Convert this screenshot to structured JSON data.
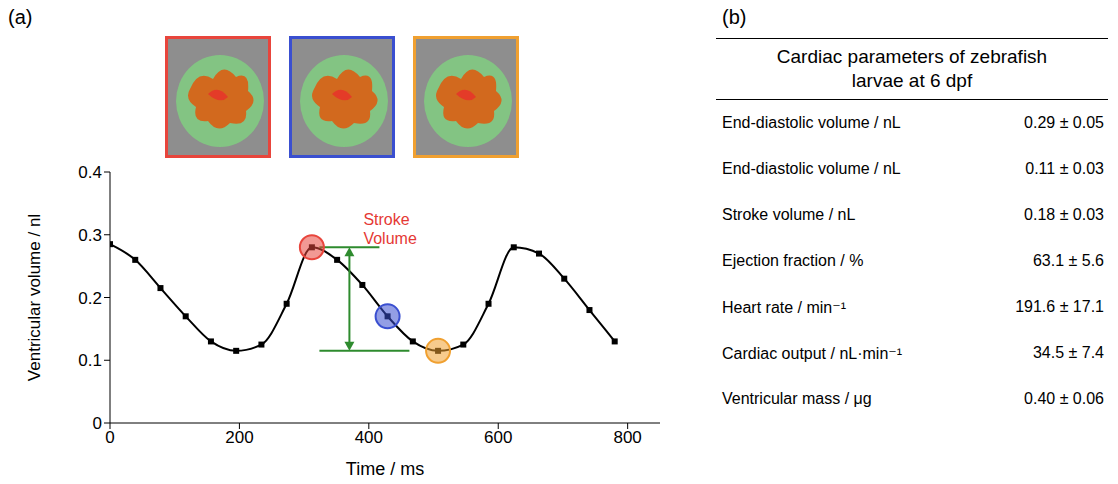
{
  "panel_labels": [
    "(a)",
    "(b)"
  ],
  "chart_data": {
    "type": "line",
    "x_label": "Time / ms",
    "y_label": "Ventricular volume / nl",
    "x": [
      0,
      39,
      78,
      117,
      156,
      195,
      234,
      273,
      312,
      351,
      390,
      429,
      468,
      507,
      546,
      585,
      624,
      663,
      702,
      741,
      780
    ],
    "values": [
      0.285,
      0.26,
      0.215,
      0.17,
      0.13,
      0.115,
      0.125,
      0.19,
      0.28,
      0.26,
      0.22,
      0.17,
      0.13,
      0.115,
      0.125,
      0.19,
      0.28,
      0.27,
      0.23,
      0.18,
      0.13
    ],
    "color": "#000000",
    "marker": "square",
    "line_style": "solid",
    "xlim": [
      0,
      850
    ],
    "xticks": [
      0,
      200,
      400,
      600,
      800
    ],
    "ylim": [
      0,
      0.4
    ],
    "yticks": [
      0,
      0.1,
      0.2,
      0.3,
      0.4
    ],
    "grid": false,
    "highlights": [
      {
        "x": 312,
        "y": 0.28,
        "color": "#e8453c"
      },
      {
        "x": 429,
        "y": 0.17,
        "color": "#3a4fd0"
      },
      {
        "x": 507,
        "y": 0.115,
        "color": "#f0a030"
      }
    ],
    "annotation": {
      "text": "Stroke Volume",
      "x": 370,
      "from": 0.28,
      "to": 0.115,
      "color": "#2e8b2e",
      "text_color": "#e53935"
    }
  },
  "table": {
    "title": "Cardiac parameters of zebrafish larvae at 6 dpf",
    "rows": [
      [
        "End-diastolic volume / nL",
        "0.29 ± 0.05"
      ],
      [
        "End-diastolic volume / nL",
        "0.11 ± 0.03"
      ],
      [
        "Stroke volume / nL",
        "0.18 ± 0.03"
      ],
      [
        "Ejection fraction / %",
        "63.1 ± 5.6"
      ],
      [
        "Heart rate / min⁻¹",
        "191.6 ± 17.1"
      ],
      [
        "Cardiac output / nL·min⁻¹",
        "34.5 ± 7.4"
      ],
      [
        "Ventricular mass / μg",
        "0.40 ± 0.06"
      ]
    ]
  }
}
